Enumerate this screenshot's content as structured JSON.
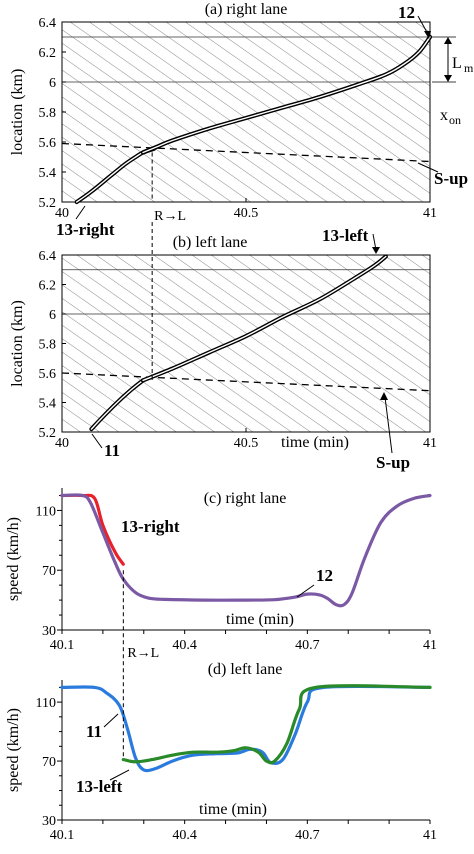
{
  "chart_data": [
    {
      "type": "line",
      "title": "(a) right lane",
      "xlabel": "",
      "ylabel": "location (km)",
      "xlim": [
        40,
        41
      ],
      "ylim": [
        5.2,
        6.4
      ],
      "x_ticks": [
        "40",
        "40.5",
        "41"
      ],
      "y_ticks": [
        "5.2",
        "5.4",
        "5.6",
        "5.8",
        "6",
        "6.2",
        "6.4"
      ],
      "hlines": [
        6.0,
        6.3
      ],
      "s_up_line": {
        "x": [
          40,
          41
        ],
        "y": [
          5.59,
          5.47
        ]
      },
      "series": [
        {
          "name": "13-right",
          "x": [
            40.04,
            40.08,
            40.13,
            40.17,
            40.2,
            40.22,
            40.25
          ],
          "y": [
            5.2,
            5.27,
            5.37,
            5.45,
            5.5,
            5.53,
            5.555
          ]
        },
        {
          "name": "12",
          "x": [
            40.22,
            40.26,
            40.3,
            40.4,
            40.5,
            40.6,
            40.7,
            40.8,
            40.88,
            40.93,
            40.97,
            41.0
          ],
          "y": [
            5.53,
            5.57,
            5.61,
            5.69,
            5.76,
            5.83,
            5.9,
            5.98,
            6.05,
            6.12,
            6.2,
            6.3
          ]
        }
      ],
      "annotations": {
        "curve_label_top": "12",
        "curve_label_bottom": "13-right",
        "s_up_label": "S-up",
        "lm_label": "L",
        "lm_sub": "m",
        "xon_label": "x",
        "xon_sub": "on"
      }
    },
    {
      "type": "line",
      "title": "(b) left lane",
      "xlabel": "time (min)",
      "ylabel": "location (km)",
      "xlim": [
        40,
        41
      ],
      "ylim": [
        5.2,
        6.4
      ],
      "x_ticks": [
        "40",
        "40.5",
        "41"
      ],
      "y_ticks": [
        "5.2",
        "5.4",
        "5.6",
        "5.8",
        "6",
        "6.2",
        "6.4"
      ],
      "hlines": [
        6.0,
        6.3
      ],
      "s_up_line": {
        "x": [
          40,
          41
        ],
        "y": [
          5.6,
          5.48
        ]
      },
      "series": [
        {
          "name": "11",
          "x": [
            40.08,
            40.11,
            40.15,
            40.19,
            40.22
          ],
          "y": [
            5.22,
            5.3,
            5.4,
            5.49,
            5.55
          ]
        },
        {
          "name": "13-left",
          "x": [
            40.22,
            40.3,
            40.4,
            40.5,
            40.6,
            40.7,
            40.8,
            40.85,
            40.88
          ],
          "y": [
            5.55,
            5.63,
            5.74,
            5.85,
            5.98,
            6.1,
            6.25,
            6.33,
            6.39
          ]
        }
      ],
      "annotations": {
        "curve_label_top": "13-left",
        "curve_label_bottom": "11",
        "s_up_label": "S-up"
      }
    },
    {
      "type": "line",
      "title": "(c) right lane",
      "xlabel": "time (min)",
      "ylabel": "speed (km/h)",
      "xlim": [
        40.1,
        41
      ],
      "ylim": [
        30,
        125
      ],
      "x_ticks": [
        "40.1",
        "40.4",
        "40.7",
        "41"
      ],
      "y_ticks": [
        "30",
        "70",
        "110"
      ],
      "series": [
        {
          "name": "13-right",
          "color": "#e8212a",
          "x": [
            40.1,
            40.15,
            40.18,
            40.2,
            40.23,
            40.25
          ],
          "y": [
            120,
            120,
            118,
            100,
            82,
            74
          ]
        },
        {
          "name": "12",
          "color": "#7b59a5",
          "x": [
            40.1,
            40.15,
            40.17,
            40.2,
            40.23,
            40.25,
            40.28,
            40.31,
            40.35,
            40.45,
            40.55,
            40.62,
            40.67,
            40.7,
            40.73,
            40.75,
            40.77,
            40.79,
            40.81,
            40.84,
            40.88,
            40.92,
            40.96,
            41.0
          ],
          "y": [
            120,
            120,
            115,
            95,
            75,
            64,
            55,
            51.5,
            50.5,
            50,
            50,
            50.3,
            52,
            54,
            53.5,
            51,
            47,
            47,
            55,
            78,
            102,
            113,
            118,
            120
          ]
        }
      ],
      "annotations": {
        "label_13": "13-right",
        "label_12": "12"
      }
    },
    {
      "type": "line",
      "title": "(d) left lane",
      "xlabel": "time (min)",
      "ylabel": "speed (km/h)",
      "xlim": [
        40.1,
        41
      ],
      "ylim": [
        30,
        125
      ],
      "x_ticks": [
        "40.1",
        "40.4",
        "40.7",
        "41"
      ],
      "y_ticks": [
        "30",
        "70",
        "110"
      ],
      "series": [
        {
          "name": "11",
          "color": "#2b7bde",
          "x": [
            40.1,
            40.18,
            40.21,
            40.24,
            40.26,
            40.28,
            40.3,
            40.33,
            40.37,
            40.42,
            40.48,
            40.53,
            40.56,
            40.59,
            40.61,
            40.64,
            40.67,
            40.7,
            40.74,
            41.0
          ],
          "y": [
            120,
            120,
            116,
            108,
            92,
            72,
            64,
            65,
            70,
            74,
            75,
            75.5,
            78,
            76,
            69,
            71,
            88,
            110,
            120,
            120
          ]
        },
        {
          "name": "13-left",
          "color": "#2a8a2a",
          "x": [
            40.25,
            40.28,
            40.32,
            40.37,
            40.42,
            40.48,
            40.52,
            40.55,
            40.58,
            40.6,
            40.62,
            40.65,
            40.68,
            40.72,
            41.0
          ],
          "y": [
            71,
            69.5,
            71,
            74,
            76,
            76,
            77,
            79,
            76,
            70,
            70,
            82,
            105,
            120,
            120
          ]
        }
      ],
      "annotations": {
        "label_11": "11",
        "label_13": "13-left"
      }
    }
  ],
  "lane_change_label": "R→L"
}
